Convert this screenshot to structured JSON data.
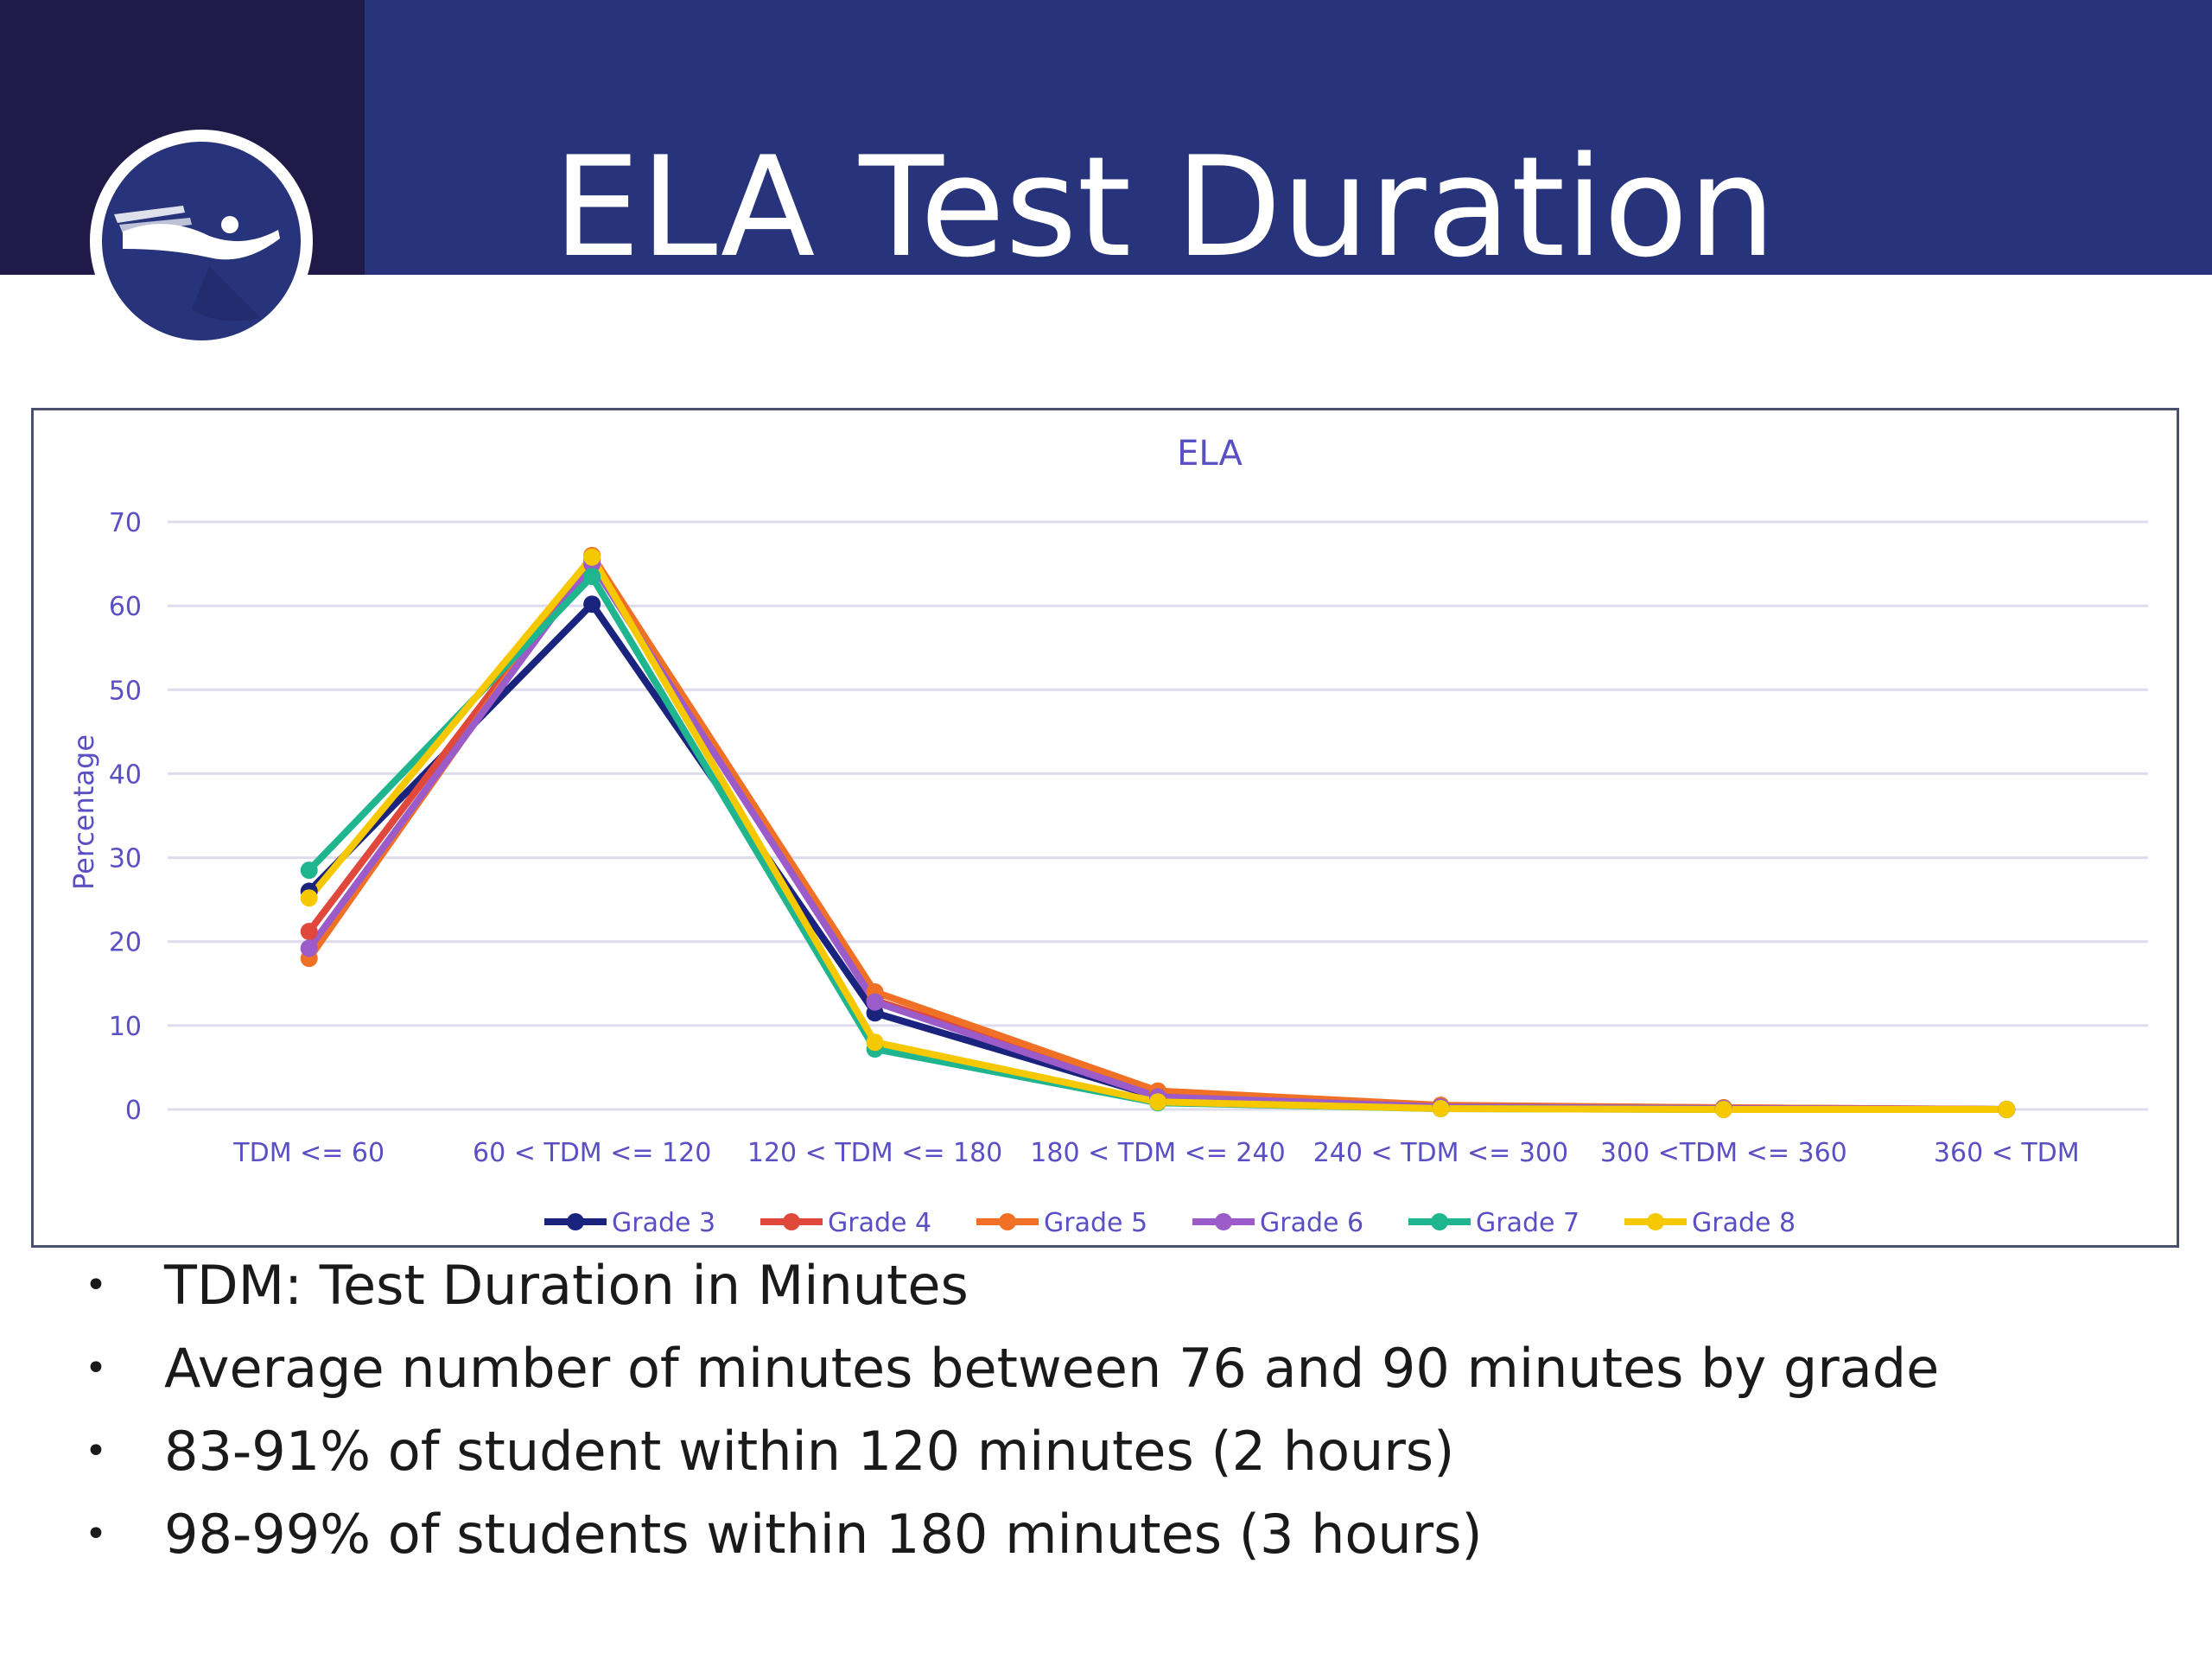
{
  "header": {
    "title": "ELA Test Duration",
    "colors": {
      "band": "#27337a",
      "logo_band": "#1f1a48"
    }
  },
  "bullets": [
    "TDM: Test Duration in Minutes",
    "Average number of minutes between 76 and 90 minutes by grade",
    "83-91% of student within 120 minutes (2 hours)",
    "98-99% of students within 180 minutes (3 hours)"
  ],
  "chart_data": {
    "type": "line",
    "title": "ELA",
    "xlabel": "",
    "ylabel": "Percentage",
    "ylim": [
      0,
      70
    ],
    "yticks": [
      0,
      10,
      20,
      30,
      40,
      50,
      60,
      70
    ],
    "grid": true,
    "legend_position": "bottom",
    "categories": [
      "TDM <= 60",
      "60 < TDM <= 120",
      "120 < TDM <= 180",
      "180 < TDM <= 240",
      "240 < TDM <= 300",
      "300 <TDM <= 360",
      "360 < TDM"
    ],
    "series": [
      {
        "name": "Grade 3",
        "color": "#1a237e",
        "values": [
          26,
          60.2,
          11.5,
          1.5,
          0.3,
          0.1,
          0
        ]
      },
      {
        "name": "Grade 4",
        "color": "#e0483b",
        "values": [
          21.2,
          65.5,
          13,
          2,
          0.4,
          0.2,
          0
        ]
      },
      {
        "name": "Grade 5",
        "color": "#f07025",
        "values": [
          18,
          66,
          14,
          2.2,
          0.5,
          0.2,
          0
        ]
      },
      {
        "name": "Grade 6",
        "color": "#9b5bc8",
        "values": [
          19.2,
          65,
          12.8,
          1.5,
          0.3,
          0.1,
          0
        ]
      },
      {
        "name": "Grade 7",
        "color": "#1fb58f",
        "values": [
          28.5,
          63.5,
          7.2,
          0.8,
          0.1,
          0,
          0
        ]
      },
      {
        "name": "Grade 8",
        "color": "#f5c800",
        "values": [
          25.2,
          65.8,
          8,
          0.9,
          0.1,
          0,
          0
        ]
      }
    ],
    "colors": {
      "text": "#5b4fc4",
      "grid": "#dcdcec"
    }
  }
}
